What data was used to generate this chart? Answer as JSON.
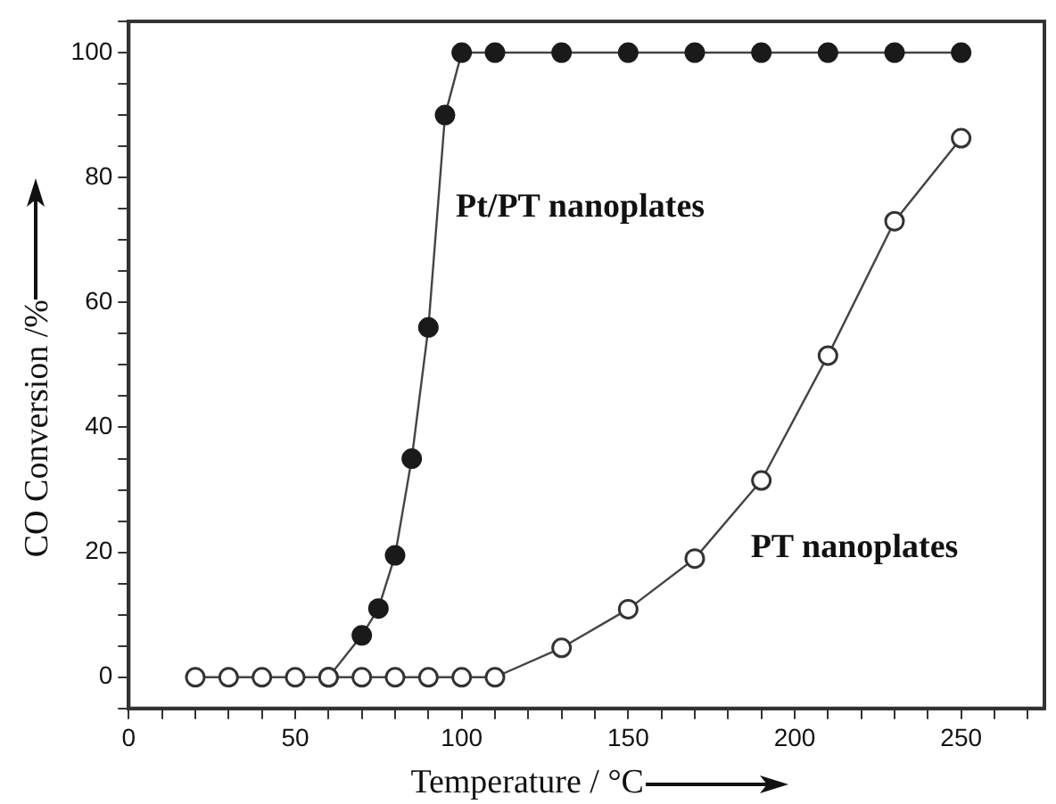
{
  "chart_data": {
    "type": "line",
    "xlabel": "Temperature / °C",
    "ylabel": "CO Conversion /%",
    "xlim": [
      0,
      275
    ],
    "ylim": [
      -5,
      105
    ],
    "xticks": [
      0,
      {
        "value": 10,
        "label": null
      },
      {
        "value": 20,
        "label": null
      },
      {
        "value": 30,
        "label": null
      },
      {
        "value": 40,
        "label": null
      },
      50,
      {
        "value": 60,
        "label": null
      },
      {
        "value": 70,
        "label": null
      },
      {
        "value": 80,
        "label": null
      },
      {
        "value": 90,
        "label": null
      },
      100,
      {
        "value": 110,
        "label": null
      },
      {
        "value": 120,
        "label": null
      },
      {
        "value": 130,
        "label": null
      },
      {
        "value": 140,
        "label": null
      },
      150,
      {
        "value": 160,
        "label": null
      },
      {
        "value": 170,
        "label": null
      },
      {
        "value": 180,
        "label": null
      },
      {
        "value": 190,
        "label": null
      },
      200,
      {
        "value": 210,
        "label": null
      },
      {
        "value": 220,
        "label": null
      },
      {
        "value": 230,
        "label": null
      },
      {
        "value": 240,
        "label": null
      },
      250,
      {
        "value": 260,
        "label": null
      },
      {
        "value": 270,
        "label": null
      }
    ],
    "yticks": [
      {
        "value": -5,
        "label": null
      },
      0,
      {
        "value": 5,
        "label": null
      },
      {
        "value": 10,
        "label": null
      },
      {
        "value": 15,
        "label": null
      },
      20,
      {
        "value": 25,
        "label": null
      },
      {
        "value": 30,
        "label": null
      },
      {
        "value": 35,
        "label": null
      },
      40,
      {
        "value": 45,
        "label": null
      },
      {
        "value": 50,
        "label": null
      },
      {
        "value": 55,
        "label": null
      },
      60,
      {
        "value": 65,
        "label": null
      },
      {
        "value": 70,
        "label": null
      },
      {
        "value": 75,
        "label": null
      },
      80,
      {
        "value": 85,
        "label": null
      },
      {
        "value": 90,
        "label": null
      },
      {
        "value": 95,
        "label": null
      },
      100,
      {
        "value": 105,
        "label": null
      }
    ],
    "grid": false,
    "legend": false,
    "marker": "circle",
    "line_style": "solid",
    "series": [
      {
        "name": "Pt/PT nanoplates",
        "color": "#1a1a1a",
        "x": [
          60,
          70,
          75,
          80,
          85,
          90,
          95,
          100,
          110,
          130,
          150,
          170,
          190,
          210,
          230,
          250
        ],
        "values": [
          0,
          6.7,
          11,
          19.5,
          35,
          56,
          90,
          100,
          100,
          100,
          100,
          100,
          100,
          100,
          100,
          100
        ]
      },
      {
        "name": "PT nanoplates",
        "color": "#333333",
        "x": [
          20,
          30,
          40,
          50,
          60,
          70,
          80,
          90,
          100,
          110,
          130,
          150,
          170,
          190,
          210,
          230,
          250
        ],
        "values": [
          0,
          0,
          0,
          0,
          0,
          0,
          0,
          0,
          0,
          0,
          4.7,
          10.9,
          19,
          31.5,
          51.5,
          73,
          86.3
        ]
      }
    ]
  }
}
